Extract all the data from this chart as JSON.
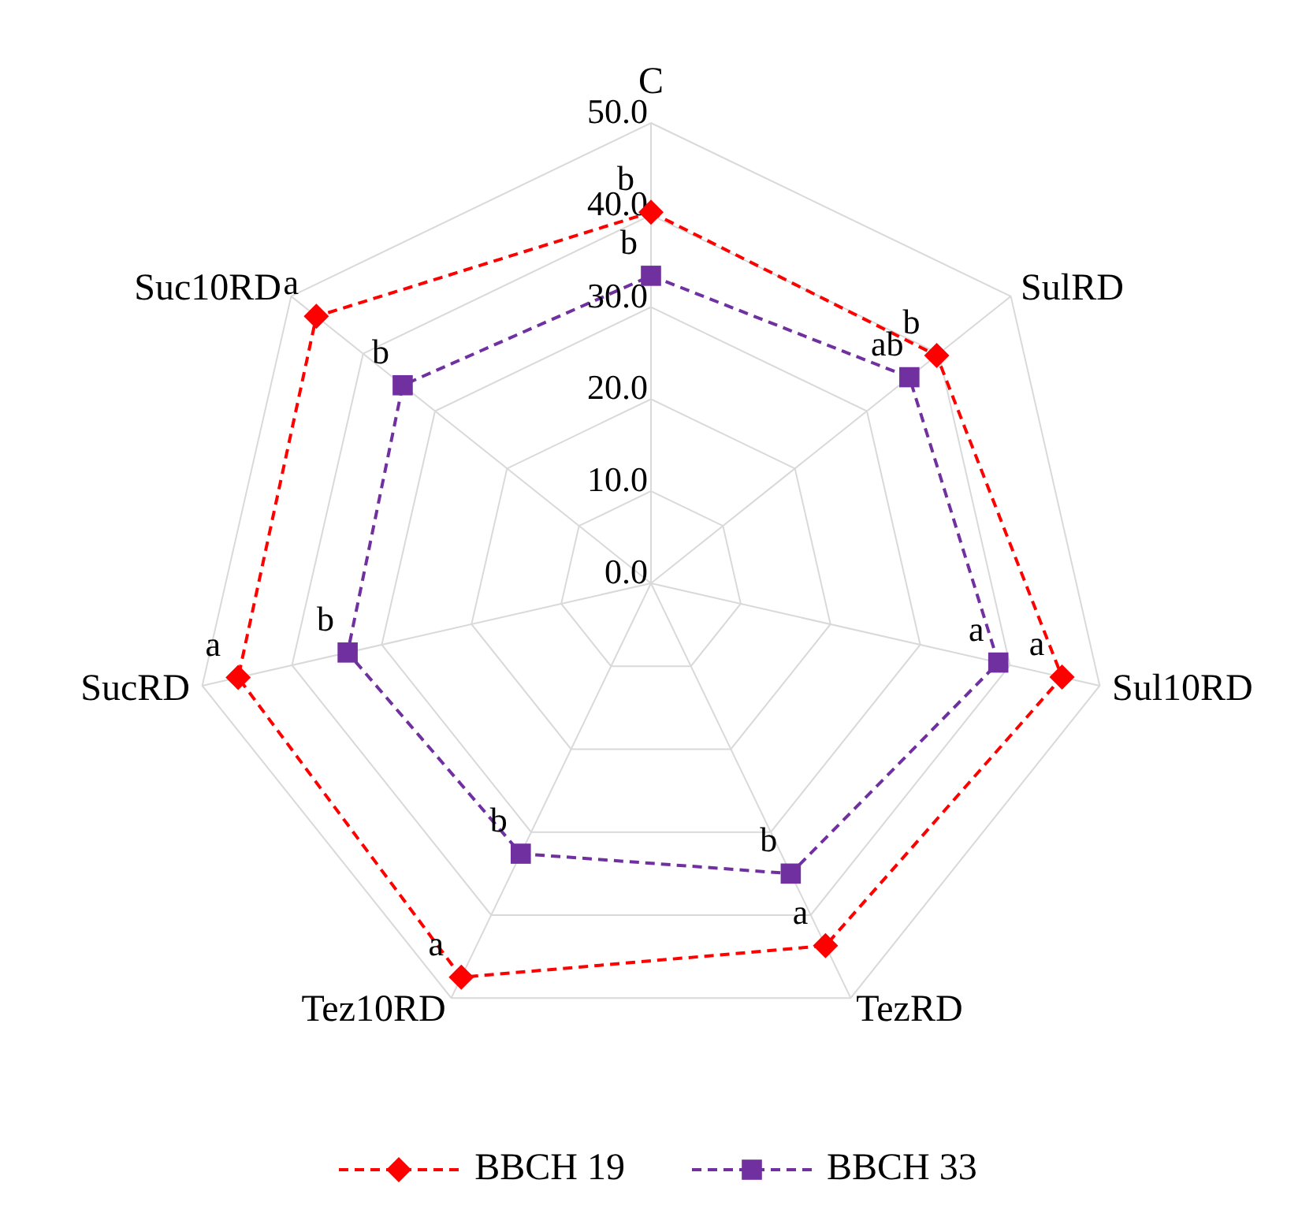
{
  "chart_data": {
    "type": "radar",
    "categories": [
      "C",
      "SulRD",
      "Sul10RD",
      "TezRD",
      "Tez10RD",
      "SucRD",
      "Suc10RD"
    ],
    "series": [
      {
        "name": "BBCH 19",
        "color": "#ff0000",
        "values": [
          40.3,
          39.7,
          45.8,
          43.7,
          47.5,
          46.0,
          46.5
        ],
        "value_labels": [
          "b",
          "b",
          "a",
          "a",
          "a",
          "a",
          "a"
        ],
        "marker": "diamond"
      },
      {
        "name": "BBCH 33",
        "color": "#7030a0",
        "values": [
          33.4,
          35.9,
          38.7,
          35.0,
          32.6,
          33.8,
          34.5
        ],
        "value_labels": [
          "b",
          "ab",
          "a",
          "b",
          "b",
          "b",
          "b"
        ],
        "marker": "square"
      }
    ],
    "ylim": [
      0,
      50
    ],
    "yticks": [
      {
        "value": 0,
        "label": "0.0"
      },
      {
        "value": 10,
        "label": "10.0"
      },
      {
        "value": 20,
        "label": "20.0"
      },
      {
        "value": 30,
        "label": "30.0"
      },
      {
        "value": 40,
        "label": "40.0"
      },
      {
        "value": 50,
        "label": "50.0"
      }
    ],
    "grid": true,
    "legend": "bottom",
    "line_style": "dashed"
  }
}
